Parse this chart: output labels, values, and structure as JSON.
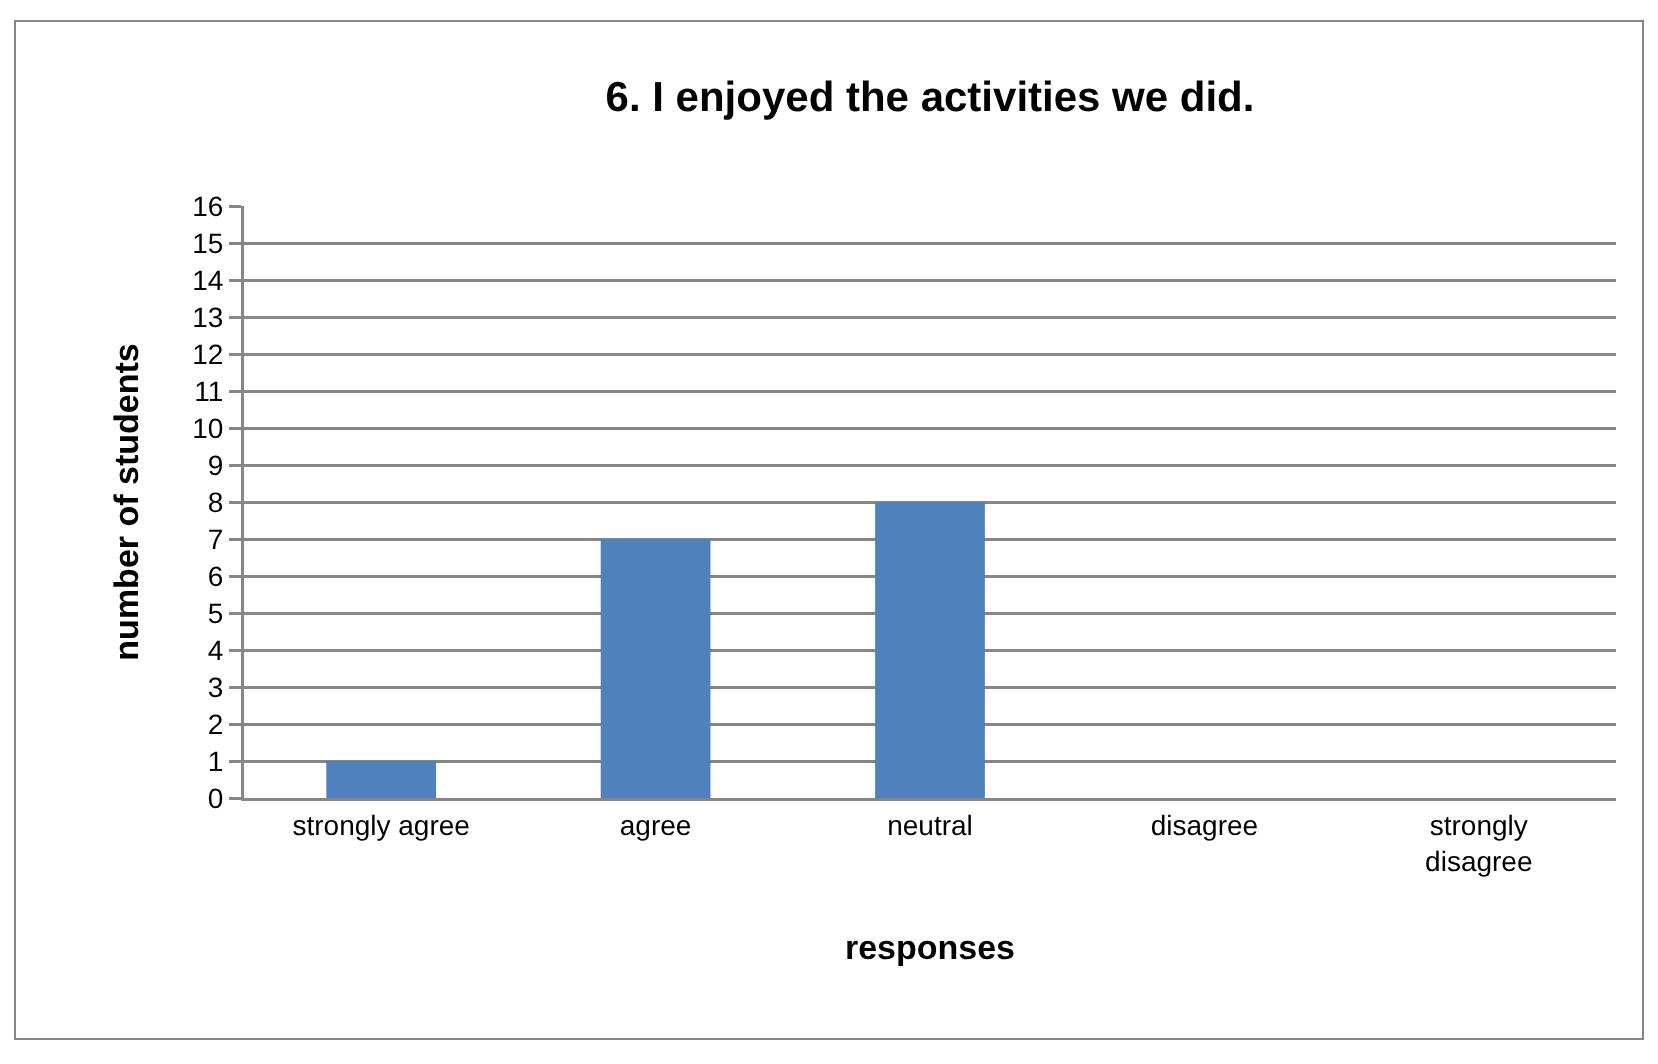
{
  "chart_data": {
    "type": "bar",
    "title": "6. I enjoyed the activities we did.",
    "xlabel": "responses",
    "ylabel": "number of students",
    "categories": [
      "strongly agree",
      "agree",
      "neutral",
      "disagree",
      "strongly disagree"
    ],
    "values": [
      1,
      7,
      8,
      0,
      0
    ],
    "color": "#4f81bd",
    "ylim": [
      0,
      16
    ],
    "yticks": [
      0,
      1,
      2,
      3,
      4,
      5,
      6,
      7,
      8,
      9,
      10,
      11,
      12,
      13,
      14,
      15,
      16
    ],
    "grid": "y"
  }
}
